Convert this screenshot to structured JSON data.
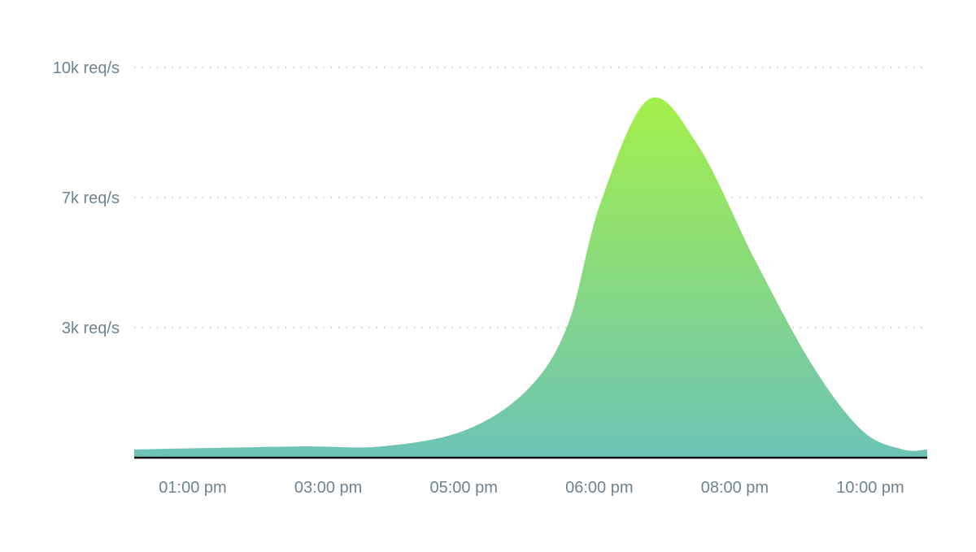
{
  "chart_data": {
    "type": "area",
    "title": "",
    "xlabel": "",
    "ylabel": "",
    "y_ticks": [
      {
        "value": 3000,
        "label": "3k req/s"
      },
      {
        "value": 7000,
        "label": "7k req/s"
      },
      {
        "value": 10000,
        "label": "10k req/s"
      }
    ],
    "x_ticks": [
      {
        "hour": 13,
        "label": "01:00 pm"
      },
      {
        "hour": 15,
        "label": "03:00 pm"
      },
      {
        "hour": 17,
        "label": "05:00 pm"
      },
      {
        "hour": 18,
        "label": "06:00 pm"
      },
      {
        "hour": 20,
        "label": "08:00 pm"
      },
      {
        "hour": 22,
        "label": "10:00 pm"
      }
    ],
    "grid": "horizontal dotted",
    "series": [
      {
        "x": [
          "12:08",
          "14:35",
          "15:47",
          "17:00",
          "17:28",
          "17:46",
          "18:01",
          "18:44",
          "19:28",
          "20:18",
          "21:09",
          "21:53",
          "22:29",
          "22:51"
        ],
        "values": [
          190,
          260,
          260,
          620,
          1560,
          3075,
          6825,
          9270,
          8180,
          5075,
          2120,
          620,
          190,
          190
        ]
      }
    ],
    "colors": {
      "top": "#a4f04a",
      "bottom": "#6cc3b6",
      "axis_text": "#6f8290",
      "grid": "#9aa5ab",
      "baseline": "#111111"
    }
  }
}
